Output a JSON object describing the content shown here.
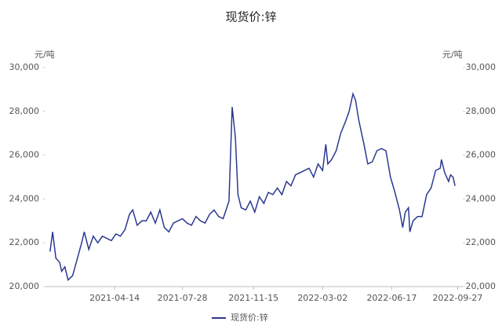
{
  "chart_data": {
    "type": "line",
    "title": "现货价:锌",
    "y_label": "元/吨",
    "y2_label": "元/吨",
    "x": [
      "2021-01-04",
      "2021-01-08",
      "2021-01-13",
      "2021-01-19",
      "2021-01-22",
      "2021-01-27",
      "2021-02-01",
      "2021-02-08",
      "2021-02-22",
      "2021-02-26",
      "2021-03-05",
      "2021-03-12",
      "2021-03-19",
      "2021-03-26",
      "2021-04-02",
      "2021-04-09",
      "2021-04-16",
      "2021-04-23",
      "2021-04-30",
      "2021-05-07",
      "2021-05-12",
      "2021-05-19",
      "2021-05-26",
      "2021-06-02",
      "2021-06-09",
      "2021-06-16",
      "2021-06-23",
      "2021-06-30",
      "2021-07-07",
      "2021-07-14",
      "2021-07-21",
      "2021-07-28",
      "2021-08-04",
      "2021-08-11",
      "2021-08-18",
      "2021-08-25",
      "2021-09-01",
      "2021-09-08",
      "2021-09-15",
      "2021-09-22",
      "2021-09-29",
      "2021-10-08",
      "2021-10-13",
      "2021-10-18",
      "2021-10-22",
      "2021-10-27",
      "2021-11-03",
      "2021-11-10",
      "2021-11-17",
      "2021-11-24",
      "2021-12-01",
      "2021-12-08",
      "2021-12-15",
      "2021-12-22",
      "2021-12-29",
      "2022-01-05",
      "2022-01-12",
      "2022-01-19",
      "2022-01-26",
      "2022-02-09",
      "2022-02-16",
      "2022-02-23",
      "2022-03-02",
      "2022-03-07",
      "2022-03-10",
      "2022-03-16",
      "2022-03-23",
      "2022-03-30",
      "2022-04-06",
      "2022-04-12",
      "2022-04-18",
      "2022-04-22",
      "2022-04-27",
      "2022-05-05",
      "2022-05-11",
      "2022-05-18",
      "2022-05-25",
      "2022-06-01",
      "2022-06-08",
      "2022-06-15",
      "2022-06-22",
      "2022-06-29",
      "2022-07-04",
      "2022-07-08",
      "2022-07-13",
      "2022-07-15",
      "2022-07-20",
      "2022-07-27",
      "2022-08-03",
      "2022-08-10",
      "2022-08-17",
      "2022-08-24",
      "2022-08-31",
      "2022-09-02",
      "2022-09-07",
      "2022-09-13",
      "2022-09-16",
      "2022-09-20",
      "2022-09-23"
    ],
    "series": [
      {
        "name": "现货价:锌",
        "color": "#2b3990",
        "values": [
          21600,
          22500,
          21300,
          21100,
          20700,
          20900,
          20300,
          20500,
          22000,
          22500,
          21700,
          22300,
          22000,
          22300,
          22200,
          22100,
          22400,
          22300,
          22600,
          23300,
          23500,
          22800,
          23000,
          23000,
          23400,
          22900,
          23500,
          22700,
          22500,
          22900,
          23000,
          23100,
          22900,
          22800,
          23200,
          23000,
          22900,
          23300,
          23500,
          23200,
          23100,
          23900,
          28200,
          26800,
          24200,
          23600,
          23500,
          23900,
          23400,
          24100,
          23800,
          24300,
          24200,
          24500,
          24200,
          24800,
          24600,
          25100,
          25200,
          25400,
          25000,
          25600,
          25300,
          26500,
          25600,
          25800,
          26200,
          27000,
          27500,
          28000,
          28800,
          28500,
          27600,
          26500,
          25600,
          25700,
          26200,
          26300,
          26200,
          25000,
          24300,
          23500,
          22700,
          23400,
          23600,
          22500,
          23000,
          23200,
          23200,
          24200,
          24500,
          25300,
          25400,
          25800,
          25200,
          24800,
          25100,
          25000,
          24600
        ]
      }
    ],
    "xlim": [
      "2020-12-28",
      "2022-10-05"
    ],
    "xticks": [
      "2021-04-14",
      "2021-07-28",
      "2021-11-15",
      "2022-03-02",
      "2022-06-17",
      "2022-09-27"
    ],
    "ylim": [
      20000,
      30000
    ],
    "yticks": [
      {
        "value": 20000,
        "label": "20,000"
      },
      {
        "value": 22000,
        "label": "22,000"
      },
      {
        "value": 24000,
        "label": "24,000"
      },
      {
        "value": 26000,
        "label": "26,000"
      },
      {
        "value": 28000,
        "label": "28,000"
      },
      {
        "value": 30000,
        "label": "30,000"
      }
    ],
    "y2lim": [
      20000,
      30000
    ],
    "y2ticks": [
      {
        "value": 20000,
        "label": "20,000"
      },
      {
        "value": 22000,
        "label": "22,000"
      },
      {
        "value": 24000,
        "label": "24,000"
      },
      {
        "value": 26000,
        "label": "26,000"
      },
      {
        "value": 28000,
        "label": "28,000"
      },
      {
        "value": 30000,
        "label": "30,000"
      }
    ],
    "legend": "bottom",
    "grid": false
  }
}
